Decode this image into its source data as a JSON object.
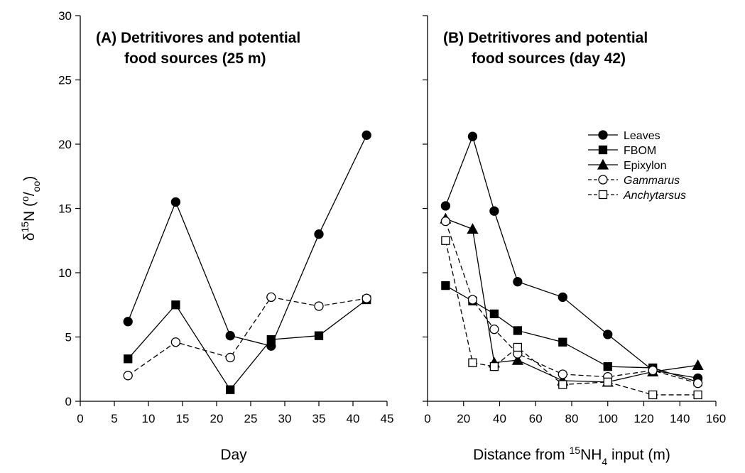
{
  "chart_data": [
    {
      "type": "line",
      "title": [
        "(A) Detritivores and potential",
        "food sources (25 m)"
      ],
      "x_label": [
        {
          "text": "Day"
        }
      ],
      "y_label": [
        {
          "text": "δ"
        },
        {
          "text": "15",
          "shift": "super"
        },
        {
          "text": "N ("
        },
        {
          "text": "o",
          "shift": "super"
        },
        {
          "text": "/"
        },
        {
          "text": "oo",
          "shift": "sub"
        },
        {
          "text": ")"
        }
      ],
      "x": [
        7,
        14,
        22,
        28,
        35,
        42
      ],
      "xlim": [
        0,
        45
      ],
      "xticks": [
        0,
        5,
        10,
        15,
        20,
        25,
        30,
        35,
        40,
        45
      ],
      "ylim": [
        0,
        30
      ],
      "yticks": [
        0,
        5,
        10,
        15,
        20,
        25,
        30
      ],
      "show_ytick_labels": true,
      "series": [
        {
          "name": "Leaves",
          "color": "#000000",
          "marker": "circle",
          "filled": true,
          "dashed": false,
          "values": [
            6.2,
            15.5,
            5.1,
            4.3,
            13.0,
            20.7
          ]
        },
        {
          "name": "FBOM",
          "color": "#000000",
          "marker": "square",
          "filled": true,
          "dashed": false,
          "values": [
            3.3,
            7.5,
            0.9,
            4.8,
            5.1,
            7.9
          ]
        },
        {
          "name": "Gammarus",
          "color": "#000000",
          "marker": "circle",
          "filled": false,
          "dashed": true,
          "values": [
            2.0,
            4.6,
            3.4,
            8.1,
            7.4,
            8.0
          ]
        }
      ],
      "legend": false
    },
    {
      "type": "line",
      "title": [
        "(B)  Detritivores and potential",
        "food sources (day 42)"
      ],
      "x_label": [
        {
          "text": "Distance from "
        },
        {
          "text": "15",
          "shift": "super"
        },
        {
          "text": "NH"
        },
        {
          "text": "4",
          "shift": "sub"
        },
        {
          "text": " input (m)"
        }
      ],
      "x": [
        10,
        25,
        37,
        50,
        75,
        100,
        125,
        150
      ],
      "xlim": [
        0,
        160
      ],
      "xticks": [
        0,
        20,
        40,
        60,
        80,
        100,
        120,
        140,
        160
      ],
      "ylim": [
        0,
        30
      ],
      "yticks": [
        0,
        5,
        10,
        15,
        20,
        25,
        30
      ],
      "show_ytick_labels": false,
      "series": [
        {
          "name": "Leaves",
          "color": "#000000",
          "marker": "circle",
          "filled": true,
          "dashed": false,
          "italic": false,
          "values": [
            15.2,
            20.6,
            14.8,
            9.3,
            8.1,
            5.2,
            2.4,
            1.8
          ]
        },
        {
          "name": "FBOM",
          "color": "#000000",
          "marker": "square",
          "filled": true,
          "dashed": false,
          "italic": false,
          "values": [
            9.0,
            7.8,
            6.8,
            5.5,
            4.6,
            2.7,
            2.6,
            1.5
          ]
        },
        {
          "name": "Epixylon",
          "color": "#000000",
          "marker": "triangle",
          "filled": true,
          "dashed": false,
          "italic": false,
          "values": [
            14.2,
            13.4,
            3.0,
            3.2,
            1.6,
            1.5,
            2.3,
            2.8
          ]
        },
        {
          "name": "Gammarus",
          "color": "#000000",
          "marker": "circle",
          "filled": false,
          "dashed": true,
          "italic": true,
          "values": [
            14.0,
            7.9,
            5.6,
            3.7,
            2.1,
            1.9,
            2.4,
            1.4
          ]
        },
        {
          "name": "Anchytarsus",
          "color": "#000000",
          "marker": "square",
          "filled": false,
          "dashed": true,
          "italic": true,
          "values": [
            12.5,
            3.0,
            2.7,
            4.2,
            1.3,
            1.5,
            0.5,
            0.5
          ]
        }
      ],
      "legend": true,
      "legend_position": "upper-right"
    }
  ]
}
